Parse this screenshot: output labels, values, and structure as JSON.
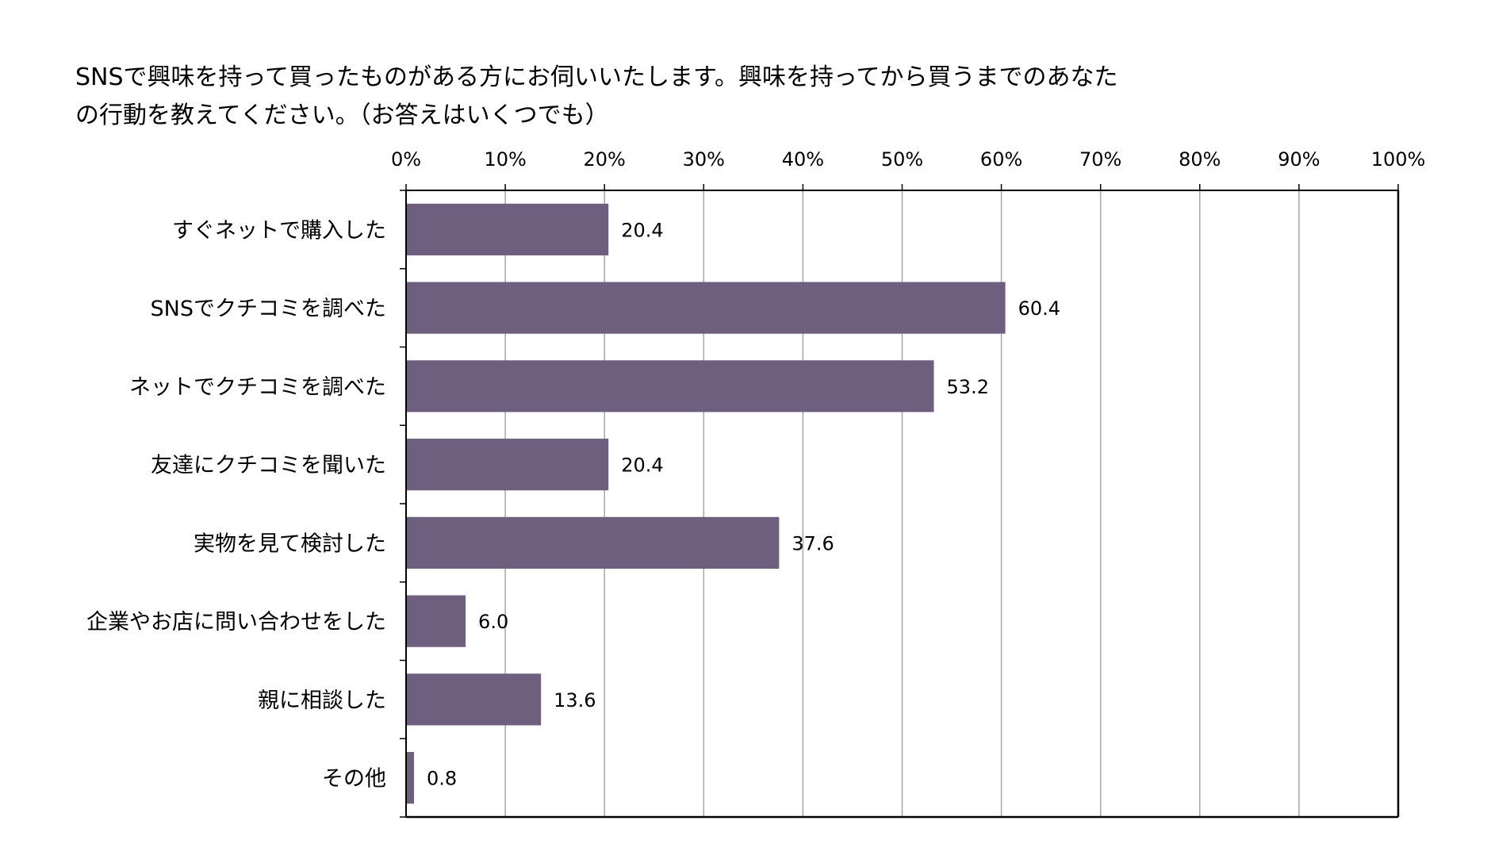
{
  "chart_data": {
    "type": "bar",
    "orientation": "horizontal",
    "title_lines": [
      "SNSで興味を持って買ったものがある方にお伺いいたします。興味を持ってから買うまでのあなた",
      "の行動を教えてください。（お答えはいくつでも）"
    ],
    "categories": [
      "すぐネットで購入した",
      "SNSでクチコミを調べた",
      "ネットでクチコミを調べた",
      "友達にクチコミを聞いた",
      "実物を見て検討した",
      "企業やお店に問い合わせをした",
      "親に相談した",
      "その他"
    ],
    "values": [
      20.4,
      60.4,
      53.2,
      20.4,
      37.6,
      6.0,
      13.6,
      0.8
    ],
    "value_labels": [
      "20.4",
      "60.4",
      "53.2",
      "20.4",
      "37.6",
      "6.0",
      "13.6",
      "0.8"
    ],
    "xlim": [
      0,
      100
    ],
    "x_ticks": [
      0,
      10,
      20,
      30,
      40,
      50,
      60,
      70,
      80,
      90,
      100
    ],
    "x_tick_labels": [
      "0%",
      "10%",
      "20%",
      "30%",
      "40%",
      "50%",
      "60%",
      "70%",
      "80%",
      "90%",
      "100%"
    ],
    "x_axis_position": "top",
    "grid": true,
    "bar_color": "#6e5f7e",
    "grid_color": "#a6a6a6",
    "axis_color": "#000000"
  }
}
